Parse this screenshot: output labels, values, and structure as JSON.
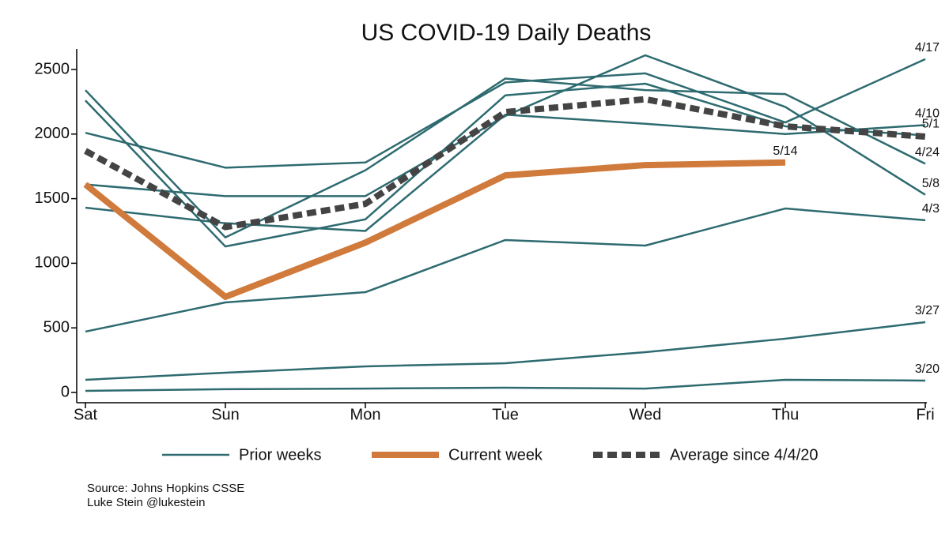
{
  "chart_data": {
    "type": "line",
    "title": "US COVID-19 Daily Deaths",
    "categories": [
      "Sat",
      "Sun",
      "Mon",
      "Tue",
      "Wed",
      "Thu",
      "Fri"
    ],
    "ylim": [
      0,
      2600
    ],
    "yticks": [
      0,
      500,
      1000,
      1500,
      2000,
      2500
    ],
    "styles": {
      "prior": {
        "color": "#2e6b70",
        "width": 2.5,
        "dash": null
      },
      "current": {
        "color": "#d07a3c",
        "width": 8,
        "dash": null
      },
      "average": {
        "color": "#444444",
        "width": 8,
        "dash": "12 6"
      }
    },
    "series": [
      {
        "label": "3/20",
        "style": "prior",
        "values": [
          12,
          25,
          30,
          37,
          30,
          98,
          92
        ]
      },
      {
        "label": "3/27",
        "style": "prior",
        "values": [
          98,
          153,
          202,
          226,
          312,
          416,
          544
        ]
      },
      {
        "label": "4/3",
        "style": "prior",
        "values": [
          471,
          697,
          776,
          1180,
          1137,
          1424,
          1333
        ]
      },
      {
        "label": "4/10",
        "style": "prior",
        "values": [
          1430,
          1310,
          1250,
          2150,
          2080,
          2000,
          2070
        ]
      },
      {
        "label": "4/17",
        "style": "prior",
        "values": [
          2010,
          1740,
          1780,
          2400,
          2470,
          2090,
          2580
        ]
      },
      {
        "label": "4/24",
        "style": "prior",
        "values": [
          2340,
          1200,
          1720,
          2430,
          2340,
          2310,
          1770
        ]
      },
      {
        "label": "5/1",
        "style": "prior",
        "values": [
          2260,
          1130,
          1340,
          2300,
          2390,
          2060,
          1990
        ]
      },
      {
        "label": "5/8",
        "style": "prior",
        "values": [
          1610,
          1520,
          1520,
          2140,
          2610,
          2210,
          1530
        ]
      },
      {
        "style": "average",
        "values": [
          1870,
          1280,
          1460,
          2170,
          2270,
          2060,
          1980
        ]
      },
      {
        "label": "5/14",
        "style": "current",
        "values": [
          1610,
          740,
          1160,
          1680,
          1760,
          1780,
          null
        ]
      }
    ],
    "legend": [
      {
        "name": "Prior weeks",
        "style": "prior"
      },
      {
        "name": "Current week",
        "style": "current"
      },
      {
        "name": "Average since 4/4/20",
        "style": "average"
      }
    ],
    "notes": [
      "Source: Johns Hopkins CSSE",
      "Luke Stein @lukestein"
    ]
  }
}
